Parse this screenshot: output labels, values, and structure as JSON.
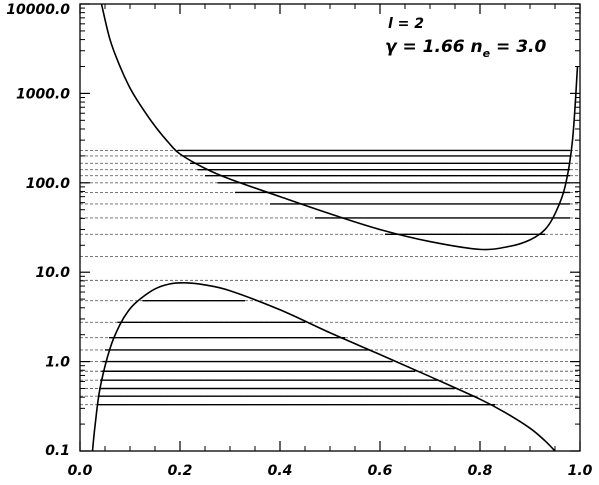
{
  "chart_data": {
    "type": "line",
    "title": "",
    "xlabel": "",
    "ylabel": "",
    "xlim": [
      0.0,
      1.0
    ],
    "ylim": [
      0.1,
      10000.0
    ],
    "yscale": "log",
    "grid": false,
    "x_ticks": [
      0.0,
      0.2,
      0.4,
      0.6,
      0.8,
      1.0
    ],
    "x_tick_labels": [
      "0.0",
      "0.2",
      "0.4",
      "0.6",
      "0.8",
      "1.0"
    ],
    "y_ticks": [
      0.1,
      1.0,
      10.0,
      100.0,
      1000.0,
      10000.0
    ],
    "y_tick_labels": [
      "0.1",
      "1.0",
      "10.0",
      "100.0",
      "1000.0",
      "10000.0"
    ],
    "annotations": {
      "line1": "l = 2",
      "line2_prefix": "γ = 1.66 n",
      "line2_sub": "e",
      "line2_suffix": " = 3.0"
    },
    "upper_curve": {
      "x": [
        0.043,
        0.06,
        0.08,
        0.1,
        0.12,
        0.15,
        0.18,
        0.2,
        0.25,
        0.3,
        0.4,
        0.5,
        0.6,
        0.7,
        0.8,
        0.86,
        0.9,
        0.93,
        0.95,
        0.97,
        0.985,
        0.995
      ],
      "y": [
        10000,
        4000,
        2000,
        1150,
        750,
        430,
        270,
        210,
        145,
        110,
        70,
        45,
        30,
        22,
        18,
        19.5,
        23,
        30,
        45,
        90,
        300,
        2000
      ]
    },
    "lower_curve": {
      "x": [
        0.025,
        0.03,
        0.04,
        0.06,
        0.08,
        0.1,
        0.12,
        0.15,
        0.18,
        0.21,
        0.25,
        0.3,
        0.4,
        0.5,
        0.6,
        0.7,
        0.8,
        0.85,
        0.9,
        0.93,
        0.95
      ],
      "y": [
        0.1,
        0.19,
        0.5,
        1.4,
        2.6,
        3.9,
        5.0,
        6.5,
        7.4,
        7.6,
        7.2,
        6.2,
        3.8,
        2.1,
        1.2,
        0.68,
        0.38,
        0.27,
        0.18,
        0.13,
        0.1
      ]
    },
    "dashed_levels": [
      0.33,
      0.41,
      0.5,
      0.62,
      0.78,
      1.0,
      1.35,
      1.85,
      2.75,
      4.8,
      8.1,
      15.0,
      26.5,
      40.5,
      58.0,
      78.0,
      100.0,
      120.0,
      140.0,
      165.0,
      200.0,
      230.0
    ],
    "solid_segments_upper": [
      {
        "y": 230.0,
        "x0": 0.195,
        "x1": 0.98
      },
      {
        "y": 200.0,
        "x0": 0.205,
        "x1": 0.98
      },
      {
        "y": 165.0,
        "x0": 0.22,
        "x1": 0.98
      },
      {
        "y": 140.0,
        "x0": 0.235,
        "x1": 0.98
      },
      {
        "y": 120.0,
        "x0": 0.25,
        "x1": 0.98
      },
      {
        "y": 100.0,
        "x0": 0.275,
        "x1": 0.98
      },
      {
        "y": 78.0,
        "x0": 0.31,
        "x1": 0.98
      },
      {
        "y": 58.0,
        "x0": 0.38,
        "x1": 0.98
      },
      {
        "y": 40.5,
        "x0": 0.47,
        "x1": 0.98
      },
      {
        "y": 26.5,
        "x0": 0.61,
        "x1": 0.93
      }
    ],
    "solid_segments_lower": [
      {
        "y": 4.8,
        "x0": 0.125,
        "x1": 0.33
      },
      {
        "y": 2.75,
        "x0": 0.075,
        "x1": 0.45
      },
      {
        "y": 1.85,
        "x0": 0.058,
        "x1": 0.53
      },
      {
        "y": 1.35,
        "x0": 0.05,
        "x1": 0.58
      },
      {
        "y": 1.0,
        "x0": 0.045,
        "x1": 0.625
      },
      {
        "y": 0.78,
        "x0": 0.043,
        "x1": 0.67
      },
      {
        "y": 0.62,
        "x0": 0.04,
        "x1": 0.715
      },
      {
        "y": 0.5,
        "x0": 0.038,
        "x1": 0.75
      },
      {
        "y": 0.41,
        "x0": 0.036,
        "x1": 0.79
      },
      {
        "y": 0.33,
        "x0": 0.034,
        "x1": 0.83
      }
    ]
  }
}
